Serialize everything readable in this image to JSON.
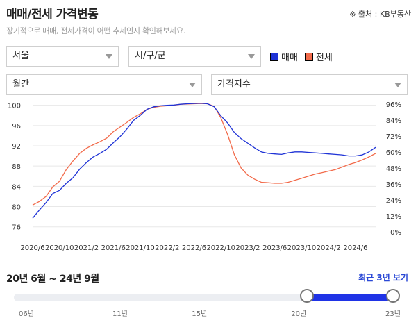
{
  "header": {
    "title": "매매/전세 가격변동",
    "source": "※ 출처 : KB부동산",
    "subtitle": "장기적으로 매매, 전세가격이 어떤 추세인지 확인해보세요."
  },
  "filters": {
    "region": "서울",
    "district": "시/구/군",
    "period": "월간",
    "metric": "가격지수"
  },
  "colors": {
    "sale": "#1f33d6",
    "jeonse": "#f26b4b",
    "grid": "#e8e8e8",
    "accent": "#2a48d6"
  },
  "chart_data": {
    "type": "line",
    "x": [
      "2020/6",
      "2020/7",
      "2020/8",
      "2020/9",
      "2020/10",
      "2020/11",
      "2020/12",
      "2021/1",
      "2021/2",
      "2021/3",
      "2021/4",
      "2021/5",
      "2021/6",
      "2021/7",
      "2021/8",
      "2021/9",
      "2021/10",
      "2021/11",
      "2021/12",
      "2022/1",
      "2022/2",
      "2022/3",
      "2022/4",
      "2022/5",
      "2022/6",
      "2022/7",
      "2022/8",
      "2022/9",
      "2022/10",
      "2022/11",
      "2022/12",
      "2023/1",
      "2023/2",
      "2023/3",
      "2023/4",
      "2023/5",
      "2023/6",
      "2023/7",
      "2023/8",
      "2023/9",
      "2023/10",
      "2023/11",
      "2023/12",
      "2024/1",
      "2024/2",
      "2024/3",
      "2024/4",
      "2024/5",
      "2024/6",
      "2024/7",
      "2024/8",
      "2024/9"
    ],
    "x_tick_labels": [
      "2020/6",
      "2020/10",
      "2021/2",
      "2021/6",
      "2021/10",
      "2022/2",
      "2022/6",
      "2022/10",
      "2023/2",
      "2023/6",
      "2023/10",
      "2024/2",
      "2024/6"
    ],
    "y_ticks": [
      "76",
      "80",
      "84",
      "88",
      "92",
      "96",
      "100"
    ],
    "y2_ticks": [
      "0%",
      "12%",
      "24%",
      "36%",
      "48%",
      "60%",
      "72%",
      "84%",
      "96%"
    ],
    "ylim": [
      75,
      100.5
    ],
    "y2lim": [
      0,
      96
    ],
    "grid": true,
    "series": [
      {
        "name": "매매",
        "values": [
          77.7,
          79.3,
          80.8,
          82.6,
          83.2,
          84.6,
          85.7,
          87.4,
          88.7,
          89.8,
          90.5,
          91.3,
          92.6,
          93.8,
          95.3,
          97.0,
          98.0,
          99.2,
          99.7,
          99.9,
          100.0,
          100.05,
          100.2,
          100.3,
          100.35,
          100.4,
          100.3,
          99.7,
          97.9,
          96.5,
          94.6,
          93.4,
          92.5,
          91.6,
          90.8,
          90.5,
          90.4,
          90.3,
          90.6,
          90.8,
          90.8,
          90.7,
          90.6,
          90.5,
          90.4,
          90.3,
          90.2,
          90.0,
          90.0,
          90.2,
          90.8,
          91.7
        ]
      },
      {
        "name": "전세",
        "values": [
          80.3,
          81.0,
          82.0,
          83.9,
          85.0,
          87.3,
          89.0,
          90.5,
          91.5,
          92.2,
          92.8,
          93.5,
          94.8,
          95.7,
          96.6,
          97.6,
          98.3,
          99.2,
          99.6,
          99.8,
          99.9,
          100.0,
          100.2,
          100.25,
          100.3,
          100.35,
          100.3,
          99.8,
          97.5,
          94.2,
          90.2,
          87.6,
          86.2,
          85.4,
          84.8,
          84.7,
          84.6,
          84.6,
          84.8,
          85.2,
          85.6,
          86.0,
          86.4,
          86.7,
          87.0,
          87.3,
          87.8,
          88.3,
          88.7,
          89.2,
          89.8,
          90.5
        ]
      }
    ]
  },
  "range": {
    "label": "20년 6월 ~ 24년 9월",
    "recent_button": "최근 3년 보기",
    "ticks": [
      "06년",
      "11년",
      "15년",
      "20년",
      "23년"
    ],
    "min_year": 2006,
    "max_year": 2024.75,
    "start_year": 2020.4,
    "end_year": 2024.75
  }
}
